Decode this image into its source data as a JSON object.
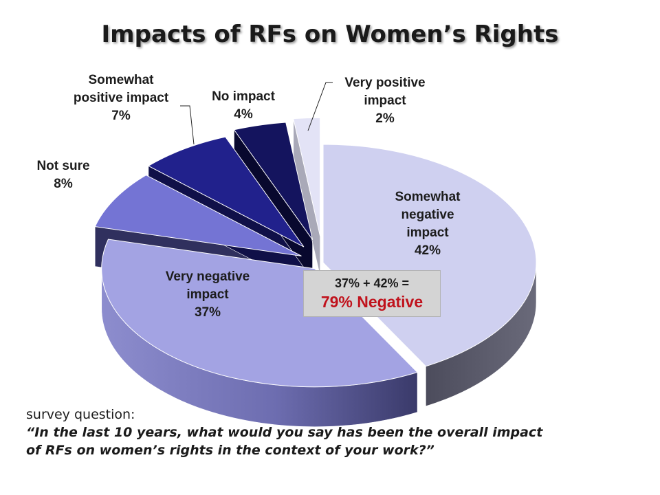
{
  "chart_data": {
    "type": "pie",
    "title": "Impacts of RFs on Women’s Rights",
    "slices": [
      {
        "label_lines": [
          "Somewhat",
          "negative",
          "impact"
        ],
        "value": 42,
        "value_label": "42%",
        "color": "#cfd0f0",
        "side_color": "#5c5c6e"
      },
      {
        "label_lines": [
          "Very negative",
          "impact"
        ],
        "value": 37,
        "value_label": "37%",
        "color": "#a3a3e3",
        "side_color": "#8686c4"
      },
      {
        "label_lines": [
          "Not sure"
        ],
        "value": 8,
        "value_label": "8%",
        "color": "#7474d4",
        "side_color": "#30305e"
      },
      {
        "label_lines": [
          "Somewhat",
          "positive impact"
        ],
        "value": 7,
        "value_label": "7%",
        "color": "#21218c",
        "side_color": "#101048"
      },
      {
        "label_lines": [
          "No impact"
        ],
        "value": 4,
        "value_label": "4%",
        "color": "#14145e",
        "side_color": "#08082e"
      },
      {
        "label_lines": [
          "Very positive",
          "impact"
        ],
        "value": 2,
        "value_label": "2%",
        "color": "#e3e3f6",
        "side_color": "#a9a9b8"
      }
    ],
    "legend": "none",
    "annotation": {
      "line1": "37% + 42% =",
      "line2": "79% Negative"
    }
  },
  "question": {
    "label": "survey question:",
    "text": "“In the last 10 years, what would you say has been the overall impact of RFs on women’s rights in the context of your work?”"
  }
}
